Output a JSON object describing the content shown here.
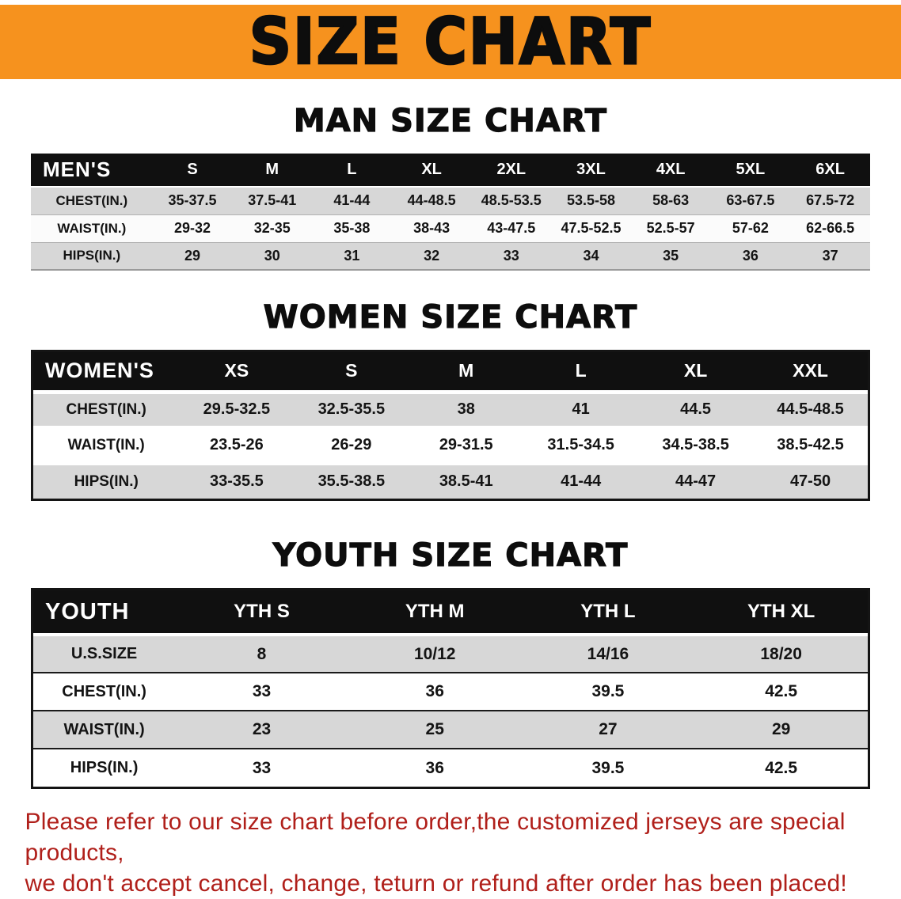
{
  "banner": {
    "title": "SIZE CHART"
  },
  "colors": {
    "banner_background": "#f6921e",
    "table_header_background": "#101010",
    "row_stripe_gray": "#d7d7d7",
    "disclaimer_red": "#b01f1a"
  },
  "sections": [
    {
      "heading": "MAN SIZE CHART",
      "table": {
        "header": [
          "MEN'S",
          "S",
          "M",
          "L",
          "XL",
          "2XL",
          "3XL",
          "4XL",
          "5XL",
          "6XL"
        ],
        "rows": [
          {
            "label": "CHEST(IN.)",
            "values": [
              "35-37.5",
              "37.5-41",
              "41-44",
              "44-48.5",
              "48.5-53.5",
              "53.5-58",
              "58-63",
              "63-67.5",
              "67.5-72"
            ]
          },
          {
            "label": "WAIST(IN.)",
            "values": [
              "29-32",
              "32-35",
              "35-38",
              "38-43",
              "43-47.5",
              "47.5-52.5",
              "52.5-57",
              "57-62",
              "62-66.5"
            ]
          },
          {
            "label": "HIPS(IN.)",
            "values": [
              "29",
              "30",
              "31",
              "32",
              "33",
              "34",
              "35",
              "36",
              "37"
            ]
          }
        ]
      }
    },
    {
      "heading": "WOMEN SIZE CHART",
      "table": {
        "header": [
          "WOMEN'S",
          "XS",
          "S",
          "M",
          "L",
          "XL",
          "XXL"
        ],
        "rows": [
          {
            "label": "CHEST(IN.)",
            "values": [
              "29.5-32.5",
              "32.5-35.5",
              "38",
              "41",
              "44.5",
              "44.5-48.5"
            ]
          },
          {
            "label": "WAIST(IN.)",
            "values": [
              "23.5-26",
              "26-29",
              "29-31.5",
              "31.5-34.5",
              "34.5-38.5",
              "38.5-42.5"
            ]
          },
          {
            "label": "HIPS(IN.)",
            "values": [
              "33-35.5",
              "35.5-38.5",
              "38.5-41",
              "41-44",
              "44-47",
              "47-50"
            ]
          }
        ]
      }
    },
    {
      "heading": "YOUTH SIZE CHART",
      "table": {
        "header": [
          "YOUTH",
          "YTH S",
          "YTH M",
          "YTH L",
          "YTH XL"
        ],
        "rows": [
          {
            "label": "U.S.SIZE",
            "values": [
              "8",
              "10/12",
              "14/16",
              "18/20"
            ]
          },
          {
            "label": "CHEST(IN.)",
            "values": [
              "33",
              "36",
              "39.5",
              "42.5"
            ]
          },
          {
            "label": "WAIST(IN.)",
            "values": [
              "23",
              "25",
              "27",
              "29"
            ]
          },
          {
            "label": "HIPS(IN.)",
            "values": [
              "33",
              "36",
              "39.5",
              "42.5"
            ]
          }
        ]
      }
    }
  ],
  "footer": {
    "lines": [
      "Please refer to our size chart before order,the customized jerseys are special products,",
      "we don't accept cancel, change, teturn or refund after order has been placed!"
    ]
  }
}
